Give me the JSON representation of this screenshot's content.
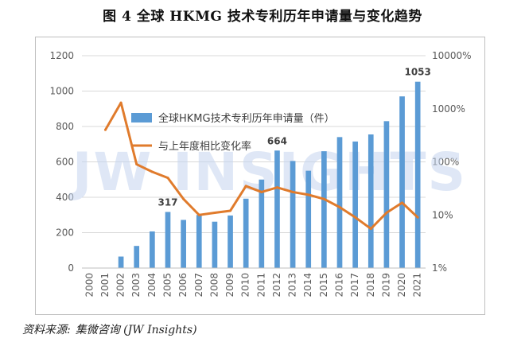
{
  "figure": {
    "title": "图 4 全球 HKMG 技术专利历年申请量与变化趋势",
    "source_label": "资料来源:",
    "source_value": "集微咨询 (JW Insights)",
    "watermark": "JW INSIGHTS"
  },
  "chart_data": {
    "type": "bar",
    "title": "",
    "xlabel": "",
    "ylabel": "",
    "categories": [
      "2000",
      "2001",
      "2002",
      "2003",
      "2004",
      "2005",
      "2006",
      "2007",
      "2008",
      "2009",
      "2010",
      "2011",
      "2012",
      "2013",
      "2014",
      "2015",
      "2016",
      "2017",
      "2018",
      "2019",
      "2020",
      "2021"
    ],
    "ylim": [
      0,
      1200
    ],
    "y_ticks": [
      "0",
      "200",
      "400",
      "600",
      "800",
      "1000",
      "1200"
    ],
    "y2_scale": "log",
    "y2lim": [
      1,
      10000
    ],
    "y2_ticks": [
      "1%",
      "10%",
      "100%",
      "1000%",
      "10000%"
    ],
    "grid": true,
    "legend_position": "upper-center",
    "colors": {
      "bar": "#5b9bd5",
      "line": "#e07b2c",
      "grid": "#d9d9d9",
      "axis_text": "#595959",
      "watermark": "#c5d5ef"
    },
    "series": [
      {
        "name": "全球HKMG技术专利历年申请量（件）",
        "kind": "bar",
        "axis": "left",
        "values": [
          null,
          null,
          65,
          125,
          207,
          317,
          272,
          300,
          262,
          297,
          392,
          500,
          664,
          605,
          550,
          660,
          740,
          715,
          755,
          830,
          970,
          1053
        ]
      },
      {
        "name": "与上年度相比变化率",
        "kind": "line",
        "axis": "right",
        "values": [
          null,
          400,
          1300,
          90,
          65,
          50,
          20,
          10,
          11,
          12,
          35,
          27,
          33,
          27,
          24,
          20,
          14,
          9,
          5.5,
          11,
          17,
          9
        ]
      }
    ],
    "data_labels": [
      {
        "category": "2005",
        "text": "317"
      },
      {
        "category": "2012",
        "text": "664"
      },
      {
        "category": "2021",
        "text": "1053"
      }
    ]
  }
}
